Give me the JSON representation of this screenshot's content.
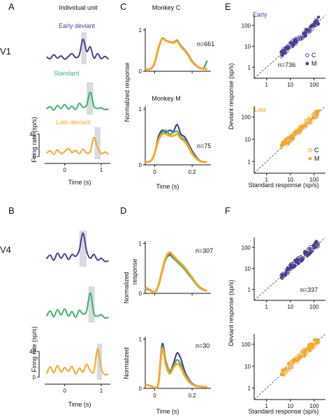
{
  "panel_letters": {
    "a": "A",
    "b": "B",
    "c": "C",
    "d": "D",
    "e": "E",
    "f": "F"
  },
  "area_labels": {
    "v1": "V1",
    "v4": "V4"
  },
  "col_a_title": "Individual unit",
  "conditions": {
    "early": "Early deviant",
    "standard": "Standard",
    "late": "Late deviant"
  },
  "colors": {
    "early": "#4B3D8F",
    "standard": "#3FAE6E",
    "late": "#F0A830",
    "shade": "#D6DBE0",
    "c_marker": "#4B3D8F",
    "m_marker": "#4B3D8F"
  },
  "axes_text": {
    "firing_rate": "Firing rate (sp/s)",
    "time": "Time (s)",
    "normalized_response": "Normalized response",
    "normalized_split": [
      "Normalized",
      "response"
    ],
    "deviant_response": "Deviant response (sp/s)",
    "standard_response": "Standard response (sp/s)"
  },
  "monkeys": {
    "c": "Monkey C",
    "m": "Monkey M"
  },
  "legend": {
    "c": "C",
    "m": "M"
  },
  "counts": {
    "v1_c": "n=661",
    "v1_m": "n=75",
    "v1_scatter": "n=736",
    "v4_c": "n=307",
    "v4_m": "n=30",
    "v4_scatter": "n=337"
  },
  "scatter_titles": {
    "early": "Early",
    "late": "Late"
  },
  "chart_data": [
    {
      "id": "A",
      "type": "line",
      "title": "Individual unit",
      "x": [
        -0.5,
        -0.4,
        -0.3,
        -0.2,
        -0.1,
        0.0,
        0.1,
        0.2,
        0.3,
        0.4,
        0.5,
        0.6,
        0.7,
        0.8,
        0.9,
        1.0,
        1.1,
        1.2
      ],
      "xticks": [
        0,
        1
      ],
      "xlim": [
        -0.55,
        1.25
      ],
      "xlabel": "Time (s)",
      "ylim": [
        0,
        40
      ],
      "yticks": [
        0,
        40
      ],
      "ylabel": "Firing rate (sp/s)",
      "series": [
        {
          "name": "Early deviant",
          "highlight": [
            0.45,
            0.6
          ],
          "values": [
            8,
            5,
            12,
            6,
            10,
            4,
            9,
            14,
            7,
            12,
            40,
            18,
            26,
            6,
            14,
            5,
            9,
            4
          ]
        },
        {
          "name": "Standard",
          "highlight": [
            0.6,
            0.78
          ],
          "values": [
            5,
            9,
            3,
            11,
            6,
            13,
            5,
            10,
            4,
            15,
            8,
            12,
            35,
            10,
            6,
            7,
            4,
            5
          ]
        },
        {
          "name": "Late deviant",
          "highlight": [
            0.82,
            0.98
          ],
          "values": [
            6,
            10,
            4,
            12,
            5,
            9,
            14,
            7,
            11,
            5,
            13,
            6,
            9,
            34,
            16,
            5,
            8,
            4
          ]
        }
      ]
    },
    {
      "id": "B",
      "type": "line",
      "x": [
        -0.5,
        -0.4,
        -0.3,
        -0.2,
        -0.1,
        0.0,
        0.1,
        0.2,
        0.3,
        0.4,
        0.5,
        0.6,
        0.7,
        0.8,
        0.9,
        1.0,
        1.1,
        1.2
      ],
      "xticks": [
        0,
        1
      ],
      "xlim": [
        -0.55,
        1.25
      ],
      "xlabel": "Time (s)",
      "ylim": [
        0,
        40
      ],
      "yticks": [
        0,
        40
      ],
      "ylabel": "Firing rate (sp/s)",
      "series": [
        {
          "name": "Early deviant",
          "highlight": [
            0.4,
            0.6
          ],
          "values": [
            8,
            14,
            6,
            17,
            9,
            16,
            7,
            15,
            12,
            22,
            48,
            20,
            9,
            15,
            6,
            9,
            4,
            5
          ]
        },
        {
          "name": "Standard",
          "highlight": [
            0.65,
            0.82
          ],
          "values": [
            6,
            14,
            5,
            16,
            8,
            17,
            6,
            13,
            4,
            15,
            9,
            14,
            42,
            10,
            6,
            8,
            3,
            4
          ]
        },
        {
          "name": "Late deviant",
          "highlight": [
            0.88,
            1.02
          ],
          "values": [
            5,
            16,
            7,
            18,
            8,
            15,
            9,
            17,
            5,
            14,
            8,
            20,
            10,
            9,
            44,
            14,
            4,
            5
          ]
        }
      ]
    },
    {
      "id": "C",
      "type": "line",
      "subplots": [
        {
          "title": "Monkey C",
          "n": "n=661",
          "x": [
            -0.05,
            -0.02,
            0.0,
            0.02,
            0.04,
            0.06,
            0.08,
            0.1,
            0.12,
            0.14,
            0.16,
            0.18,
            0.2,
            0.22,
            0.24,
            0.26,
            0.28
          ],
          "ylim": [
            0,
            1.05
          ],
          "yticks": [
            0,
            1
          ],
          "xlim": [
            -0.05,
            0.3
          ],
          "xticks": [
            0,
            0.2
          ],
          "series": [
            {
              "name": "Early deviant",
              "values": [
                0.05,
                0.06,
                0.2,
                0.55,
                0.8,
                0.75,
                0.72,
                0.7,
                0.75,
                0.62,
                0.52,
                0.4,
                0.25,
                0.15,
                0.08,
                0.06,
                0.05
              ]
            },
            {
              "name": "Standard",
              "values": [
                0.05,
                0.06,
                0.2,
                0.55,
                0.79,
                0.74,
                0.71,
                0.69,
                0.74,
                0.61,
                0.5,
                0.38,
                0.24,
                0.14,
                0.08,
                0.07,
                0.26
              ]
            },
            {
              "name": "Late deviant",
              "values": [
                0.05,
                0.06,
                0.2,
                0.55,
                0.79,
                0.74,
                0.71,
                0.69,
                0.73,
                0.6,
                0.5,
                0.38,
                0.23,
                0.14,
                0.08,
                0.06,
                0.05
              ]
            }
          ]
        },
        {
          "title": "Monkey M",
          "n": "n=75",
          "x": [
            -0.05,
            -0.02,
            0.0,
            0.02,
            0.04,
            0.06,
            0.08,
            0.1,
            0.12,
            0.14,
            0.16,
            0.18,
            0.2,
            0.22,
            0.24,
            0.26,
            0.28
          ],
          "ylim": [
            0,
            1.05
          ],
          "yticks": [
            0,
            1
          ],
          "xlim": [
            -0.05,
            0.3
          ],
          "xticks": [
            0,
            0.2
          ],
          "xlabel": "Time (s)",
          "series": [
            {
              "name": "Early deviant",
              "values": [
                0.05,
                0.07,
                0.2,
                0.5,
                0.62,
                0.58,
                0.62,
                0.6,
                0.72,
                0.55,
                0.5,
                0.38,
                0.25,
                0.15,
                0.08,
                0.05,
                0.05
              ]
            },
            {
              "name": "Standard",
              "values": [
                0.05,
                0.07,
                0.2,
                0.45,
                0.58,
                0.62,
                0.55,
                0.58,
                0.6,
                0.5,
                0.45,
                0.35,
                0.22,
                0.13,
                0.07,
                0.05,
                0.05
              ]
            },
            {
              "name": "Late deviant",
              "values": [
                0.05,
                0.07,
                0.2,
                0.44,
                0.55,
                0.55,
                0.52,
                0.52,
                0.55,
                0.47,
                0.42,
                0.32,
                0.2,
                0.12,
                0.07,
                0.05,
                0.05
              ]
            }
          ]
        }
      ]
    },
    {
      "id": "D",
      "type": "line",
      "subplots": [
        {
          "n": "n=307",
          "x": [
            -0.05,
            -0.02,
            0.0,
            0.02,
            0.04,
            0.06,
            0.08,
            0.1,
            0.12,
            0.14,
            0.16,
            0.18,
            0.2,
            0.22,
            0.24,
            0.26,
            0.28
          ],
          "ylim": [
            0,
            1.05
          ],
          "yticks": [
            0,
            1
          ],
          "xlim": [
            -0.05,
            0.3
          ],
          "xticks": [
            0,
            0.2
          ],
          "series": [
            {
              "name": "Early deviant",
              "values": [
                0.1,
                0.05,
                0.02,
                0.15,
                0.45,
                0.7,
                0.78,
                0.72,
                0.65,
                0.58,
                0.5,
                0.4,
                0.3,
                0.2,
                0.12,
                0.07,
                0.05
              ]
            },
            {
              "name": "Standard",
              "values": [
                0.1,
                0.05,
                0.02,
                0.14,
                0.43,
                0.68,
                0.76,
                0.7,
                0.63,
                0.56,
                0.48,
                0.38,
                0.29,
                0.19,
                0.11,
                0.07,
                0.05
              ]
            },
            {
              "name": "Late deviant",
              "values": [
                0.12,
                0.06,
                0.02,
                0.15,
                0.46,
                0.72,
                0.82,
                0.75,
                0.67,
                0.6,
                0.52,
                0.42,
                0.32,
                0.21,
                0.13,
                0.08,
                0.05
              ]
            }
          ]
        },
        {
          "n": "n=30",
          "x": [
            -0.05,
            -0.02,
            0.0,
            0.02,
            0.04,
            0.06,
            0.08,
            0.1,
            0.12,
            0.14,
            0.16,
            0.18,
            0.2,
            0.22,
            0.24,
            0.26,
            0.28
          ],
          "ylim": [
            0,
            1.05
          ],
          "yticks": [
            0,
            1
          ],
          "xlim": [
            -0.05,
            0.3
          ],
          "xticks": [
            0,
            0.2
          ],
          "xlabel": "Time (s)",
          "series": [
            {
              "name": "Early deviant",
              "values": [
                0.08,
                0.05,
                0.02,
                0.1,
                0.9,
                0.55,
                0.35,
                0.5,
                0.72,
                0.6,
                0.35,
                0.2,
                0.1,
                0.06,
                0.04,
                0.03,
                0.03
              ]
            },
            {
              "name": "Standard",
              "values": [
                0.08,
                0.05,
                0.02,
                0.1,
                0.85,
                0.52,
                0.33,
                0.45,
                0.58,
                0.48,
                0.3,
                0.18,
                0.09,
                0.05,
                0.04,
                0.03,
                0.03
              ]
            },
            {
              "name": "Late deviant",
              "values": [
                0.08,
                0.05,
                0.02,
                0.1,
                0.8,
                0.48,
                0.3,
                0.42,
                0.5,
                0.42,
                0.26,
                0.15,
                0.08,
                0.05,
                0.04,
                0.03,
                0.03
              ]
            }
          ]
        }
      ]
    },
    {
      "id": "E",
      "type": "scatter",
      "scale": "log",
      "xlabel": "Standard response (sp/s)",
      "ylabel": "Deviant response (sp/s)",
      "subplots": [
        {
          "title": "Early",
          "n": "n=736",
          "xlim": [
            0.3,
            300
          ],
          "ylim": [
            0.3,
            300
          ],
          "ticks": [
            1,
            10,
            100
          ],
          "color": "#4B3D8F"
        },
        {
          "title": "Late",
          "xlim": [
            0.3,
            300
          ],
          "ylim": [
            0.3,
            300
          ],
          "ticks": [
            1,
            10,
            100
          ],
          "color": "#F0A830"
        }
      ]
    },
    {
      "id": "F",
      "type": "scatter",
      "scale": "log",
      "xlabel": "Standard response (sp/s)",
      "ylabel": "Deviant response (sp/s)",
      "subplots": [
        {
          "n": "n=337",
          "xlim": [
            0.3,
            300
          ],
          "ylim": [
            0.3,
            300
          ],
          "ticks": [
            1,
            10,
            100
          ],
          "color": "#4B3D8F"
        },
        {
          "xlim": [
            0.3,
            300
          ],
          "ylim": [
            0.3,
            300
          ],
          "ticks": [
            1,
            10,
            100
          ],
          "color": "#F0A830"
        }
      ]
    }
  ]
}
